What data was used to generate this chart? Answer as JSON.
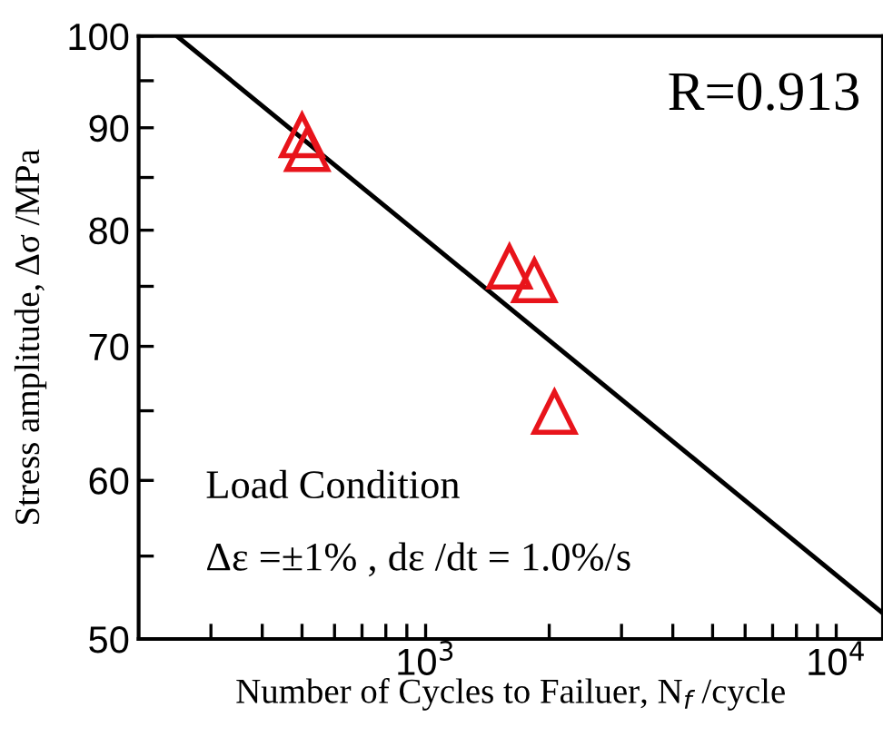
{
  "chart_data": {
    "type": "scatter",
    "xlabel": "Number of Cycles to Failuer, N$_{f}$ /cycle",
    "ylabel": "Stress amplitude, Δσ /MPa",
    "log": "xy",
    "grid": false,
    "legend": false,
    "marker": "triangle",
    "xlim": [
      200,
      13000
    ],
    "ylim": [
      50,
      100
    ],
    "xticks": [
      {
        "value": 300,
        "label": null
      },
      {
        "value": 400,
        "label": null
      },
      {
        "value": 500,
        "label": null
      },
      {
        "value": 600,
        "label": null
      },
      {
        "value": 700,
        "label": null
      },
      {
        "value": 800,
        "label": null
      },
      {
        "value": 900,
        "label": null
      },
      {
        "value": 1000,
        "label": "10$^{3}$"
      },
      {
        "value": 2000,
        "label": null
      },
      {
        "value": 3000,
        "label": null
      },
      {
        "value": 4000,
        "label": null
      },
      {
        "value": 5000,
        "label": null
      },
      {
        "value": 6000,
        "label": null
      },
      {
        "value": 7000,
        "label": null
      },
      {
        "value": 8000,
        "label": null
      },
      {
        "value": 9000,
        "label": null
      },
      {
        "value": 10000,
        "label": "10$^{4}$"
      }
    ],
    "yticks": [
      50,
      {
        "value": 55,
        "label": null
      },
      60,
      {
        "value": 65,
        "label": null
      },
      70,
      {
        "value": 75,
        "label": null
      },
      80,
      {
        "value": 85,
        "label": null
      },
      90,
      {
        "value": 95,
        "label": null
      },
      100
    ],
    "series": [
      {
        "color": "#e8141b",
        "x": [
          500,
          515,
          1600,
          1840,
          2060
        ],
        "values": [
          89.2,
          87.8,
          76.7,
          75.5,
          64.9
        ]
      },
      {
        "type": "line",
        "color": "#000000",
        "marker": "none",
        "line_style": "solid",
        "x": [
          248,
          13000
        ],
        "values": [
          100,
          51.5
        ]
      }
    ],
    "annotations": [
      "R=0.913",
      "Load Condition",
      "Δε =±1% , dε /dt = 1.0%/s"
    ]
  }
}
